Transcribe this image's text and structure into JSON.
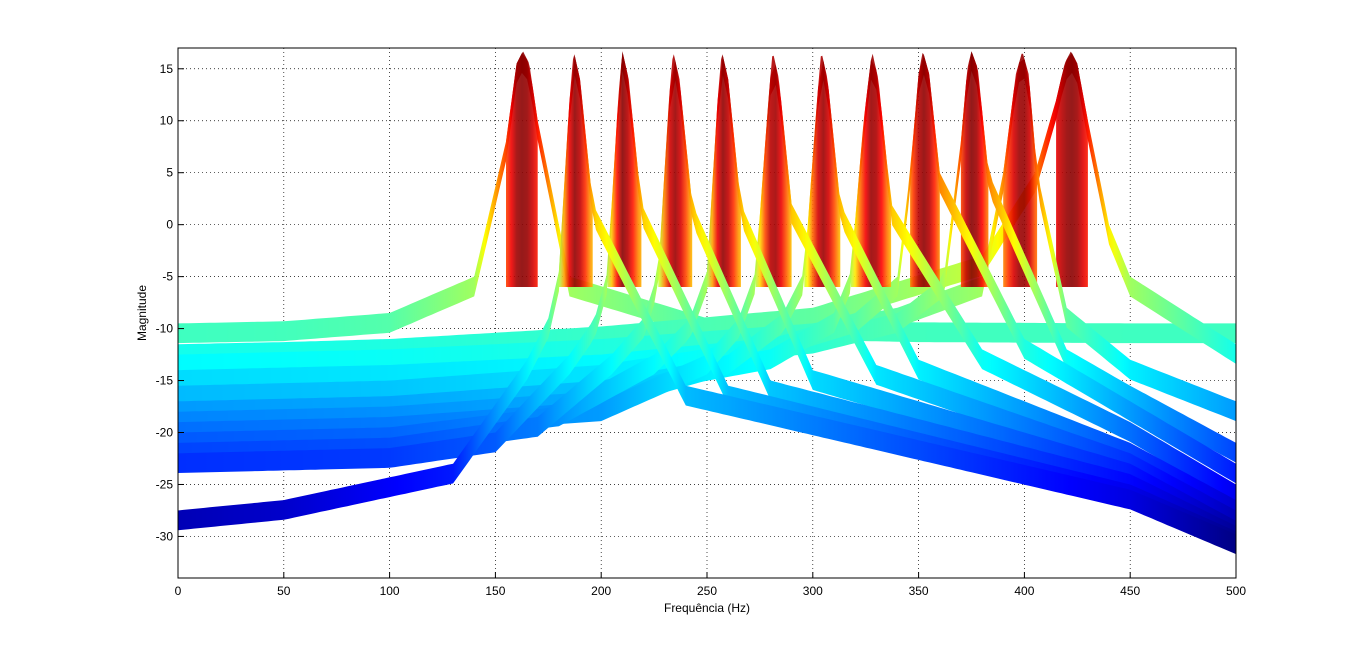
{
  "chart_data": {
    "type": "area",
    "xlabel": "Frequência (Hz)",
    "ylabel": "Magnitude",
    "xlim": [
      0,
      500
    ],
    "ylim": [
      -34,
      17
    ],
    "xticks": [
      0,
      50,
      100,
      150,
      200,
      250,
      300,
      350,
      400,
      450,
      500
    ],
    "yticks": [
      -30,
      -25,
      -20,
      -15,
      -10,
      -5,
      0,
      5,
      10,
      15
    ],
    "grid": true,
    "colormap": "jet",
    "color_range": [
      -30,
      17
    ],
    "peak_frequencies": [
      163,
      187,
      210,
      234,
      257,
      281,
      304,
      328,
      352,
      375,
      399,
      422
    ],
    "peak_magnitude": 16.7,
    "series": [
      {
        "peak_hz": 163,
        "x": [
          0,
          50,
          100,
          140,
          155,
          160,
          163,
          166,
          170,
          185,
          250,
          350,
          450,
          500
        ],
        "y": [
          -9.5,
          -9.3,
          -8.5,
          -5.0,
          8.0,
          15.5,
          16.7,
          15.5,
          10.0,
          -5.0,
          -9.0,
          -9.4,
          -9.5,
          -9.5
        ]
      },
      {
        "peak_hz": 422,
        "x": [
          0,
          50,
          100,
          200,
          300,
          380,
          405,
          415,
          419,
          422,
          425,
          430,
          440,
          450,
          500
        ],
        "y": [
          -11.5,
          -11.3,
          -11.0,
          -9.8,
          -8.0,
          -3.0,
          5.0,
          12.0,
          15.5,
          16.7,
          15.5,
          10.0,
          0.0,
          -5.0,
          -11.5
        ]
      },
      {
        "peak_hz": 399,
        "x": [
          0,
          100,
          200,
          300,
          340,
          380,
          390,
          396,
          399,
          402,
          406,
          420,
          450,
          500
        ],
        "y": [
          -12.5,
          -12.0,
          -11.0,
          -9.5,
          -8.0,
          -5.0,
          5.0,
          14.5,
          16.7,
          14.5,
          5.0,
          -8.0,
          -13.0,
          -17.0
        ]
      },
      {
        "peak_hz": 375,
        "x": [
          0,
          100,
          200,
          300,
          340,
          362,
          370,
          373,
          375,
          378,
          383,
          420,
          450,
          500
        ],
        "y": [
          -14.0,
          -13.5,
          -12.5,
          -10.5,
          -8.5,
          -5.0,
          8.0,
          15.0,
          16.7,
          15.0,
          5.0,
          -12.0,
          -15.5,
          -21.0
        ]
      },
      {
        "peak_hz": 352,
        "x": [
          0,
          100,
          200,
          280,
          320,
          340,
          346,
          350,
          352,
          355,
          360,
          400,
          450,
          500
        ],
        "y": [
          -15.5,
          -15.0,
          -13.5,
          -11.0,
          -8.5,
          -5.0,
          5.0,
          14.5,
          16.7,
          14.5,
          5.0,
          -11.0,
          -17.0,
          -23.0
        ]
      },
      {
        "peak_hz": 328,
        "x": [
          0,
          100,
          200,
          280,
          310,
          318,
          324,
          328,
          331,
          337,
          380,
          450,
          500
        ],
        "y": [
          -17.0,
          -16.5,
          -15.0,
          -12.0,
          -8.5,
          -4.5,
          10.0,
          16.7,
          14.0,
          2.0,
          -12.0,
          -19.0,
          -25.0
        ]
      },
      {
        "peak_hz": 304,
        "x": [
          0,
          100,
          200,
          260,
          286,
          296,
          302,
          304,
          307,
          313,
          350,
          450,
          500
        ],
        "y": [
          -18.0,
          -17.5,
          -16.0,
          -12.5,
          -8.5,
          -4.5,
          12.0,
          16.7,
          14.0,
          2.0,
          -13.0,
          -21.0,
          -26.5
        ]
      },
      {
        "peak_hz": 281,
        "x": [
          0,
          100,
          200,
          250,
          265,
          273,
          279,
          281,
          284,
          290,
          330,
          450,
          500
        ],
        "y": [
          -19.0,
          -18.5,
          -17.0,
          -12.5,
          -9.0,
          -4.5,
          12.0,
          16.7,
          14.0,
          2.0,
          -13.5,
          -22.0,
          -27.5
        ]
      },
      {
        "peak_hz": 257,
        "x": [
          0,
          100,
          180,
          225,
          242,
          250,
          255,
          257,
          260,
          266,
          300,
          450,
          500
        ],
        "y": [
          -20.0,
          -19.5,
          -17.5,
          -12.5,
          -9.0,
          -4.5,
          12.0,
          16.7,
          14.0,
          2.0,
          -14.0,
          -23.0,
          -28.5
        ]
      },
      {
        "peak_hz": 234,
        "x": [
          0,
          100,
          170,
          205,
          220,
          227,
          232,
          234,
          237,
          243,
          280,
          450,
          500
        ],
        "y": [
          -21.0,
          -20.5,
          -18.5,
          -12.5,
          -9.0,
          -4.5,
          12.0,
          16.7,
          14.0,
          2.0,
          -15.0,
          -24.0,
          -29.0
        ]
      },
      {
        "peak_hz": 210,
        "x": [
          0,
          100,
          150,
          185,
          197,
          203,
          208,
          210,
          213,
          219,
          260,
          450,
          500
        ],
        "y": [
          -22.0,
          -21.5,
          -20.0,
          -12.5,
          -9.0,
          -4.5,
          12.0,
          16.7,
          14.0,
          2.0,
          -15.5,
          -25.0,
          -29.5
        ]
      },
      {
        "peak_hz": 187,
        "x": [
          0,
          50,
          130,
          165,
          175,
          180,
          185,
          187,
          190,
          196,
          240,
          450,
          500
        ],
        "y": [
          -27.5,
          -26.5,
          -23.0,
          -13.0,
          -9.0,
          -4.5,
          12.0,
          16.7,
          14.0,
          2.0,
          -15.5,
          -25.5,
          -29.8
        ]
      }
    ]
  }
}
